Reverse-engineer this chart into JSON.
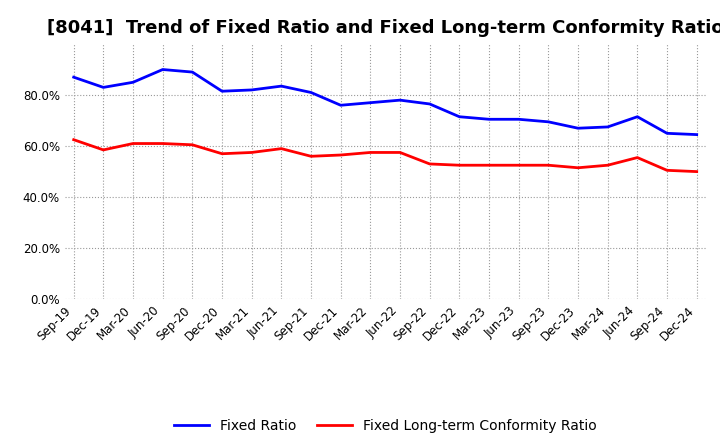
{
  "title": "[8041]  Trend of Fixed Ratio and Fixed Long-term Conformity Ratio",
  "x_labels": [
    "Sep-19",
    "Dec-19",
    "Mar-20",
    "Jun-20",
    "Sep-20",
    "Dec-20",
    "Mar-21",
    "Jun-21",
    "Sep-21",
    "Dec-21",
    "Mar-22",
    "Jun-22",
    "Sep-22",
    "Dec-22",
    "Mar-23",
    "Jun-23",
    "Sep-23",
    "Dec-23",
    "Mar-24",
    "Jun-24",
    "Sep-24",
    "Dec-24"
  ],
  "fixed_ratio": [
    87.0,
    83.0,
    85.0,
    90.0,
    89.0,
    81.5,
    82.0,
    83.5,
    81.0,
    76.0,
    77.0,
    78.0,
    76.5,
    71.5,
    70.5,
    70.5,
    69.5,
    67.0,
    67.5,
    71.5,
    65.0,
    64.5
  ],
  "fixed_lt_ratio": [
    62.5,
    58.5,
    61.0,
    61.0,
    60.5,
    57.0,
    57.5,
    59.0,
    56.0,
    56.5,
    57.5,
    57.5,
    53.0,
    52.5,
    52.5,
    52.5,
    52.5,
    51.5,
    52.5,
    55.5,
    50.5,
    50.0
  ],
  "fixed_ratio_color": "#0000FF",
  "fixed_lt_ratio_color": "#FF0000",
  "ylim": [
    0,
    100
  ],
  "yticks": [
    0,
    20,
    40,
    60,
    80
  ],
  "ytick_labels": [
    "0.0%",
    "20.0%",
    "40.0%",
    "60.0%",
    "80.0%"
  ],
  "background_color": "#FFFFFF",
  "grid_color": "#999999",
  "legend_fixed_ratio": "Fixed Ratio",
  "legend_fixed_lt": "Fixed Long-term Conformity Ratio",
  "title_fontsize": 13,
  "tick_fontsize": 8.5,
  "legend_fontsize": 10,
  "line_width": 2.0
}
